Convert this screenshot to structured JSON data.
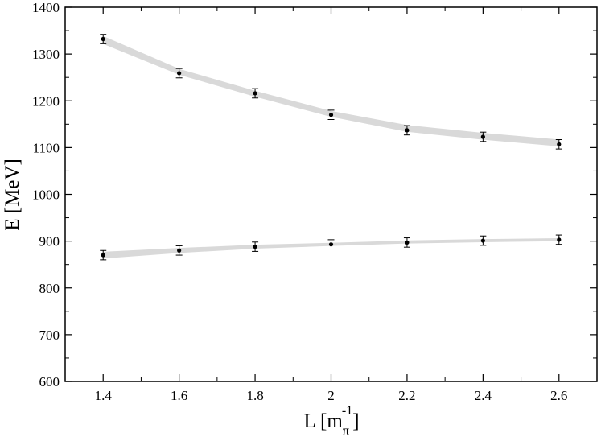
{
  "chart_data": {
    "type": "scatter",
    "title": "",
    "xlabel": {
      "main": "L [m",
      "sub": "π",
      "sup": "-1",
      "close": "]"
    },
    "ylabel": "E [MeV]",
    "xlim": [
      1.3,
      2.7
    ],
    "ylim": [
      600,
      1400
    ],
    "x_ticks": [
      1.4,
      1.6,
      1.8,
      2.0,
      2.2,
      2.4,
      2.6
    ],
    "x_tick_labels": [
      "1.4",
      "1.6",
      "1.8",
      "2",
      "2.2",
      "2.4",
      "2.6"
    ],
    "y_ticks": [
      600,
      700,
      800,
      900,
      1000,
      1100,
      1200,
      1300,
      1400
    ],
    "y_tick_labels": [
      "600",
      "700",
      "800",
      "900",
      "1000",
      "1100",
      "1200",
      "1300",
      "1400"
    ],
    "x_minor_step": 0.1,
    "y_minor_step": 50,
    "grid": false,
    "colors": {
      "points": "#000000",
      "band": "#d9d9d9",
      "axes": "#000000"
    },
    "series": [
      {
        "x": [
          1.4,
          1.6,
          1.8,
          2.0,
          2.2,
          2.4,
          2.6
        ],
        "y": [
          1332,
          1259,
          1216,
          1170,
          1137,
          1123,
          1107
        ],
        "err": [
          10,
          10,
          10,
          10,
          10,
          10,
          10
        ],
        "band": {
          "x": [
            1.4,
            1.6,
            1.8,
            2.0,
            2.2,
            2.4,
            2.6
          ],
          "y": [
            1330,
            1262,
            1215,
            1172,
            1141,
            1124,
            1110
          ],
          "halfwidth": [
            7,
            5,
            5,
            5,
            6,
            6,
            6
          ]
        }
      },
      {
        "x": [
          1.4,
          1.6,
          1.8,
          2.0,
          2.2,
          2.4,
          2.6
        ],
        "y": [
          870,
          880,
          888,
          893,
          897,
          901,
          903
        ],
        "err": [
          10,
          10,
          10,
          10,
          10,
          10,
          10
        ],
        "band": {
          "x": [
            1.4,
            1.6,
            1.8,
            2.0,
            2.2,
            2.4,
            2.6
          ],
          "y": [
            870,
            880,
            888,
            893,
            898,
            901,
            903
          ],
          "halfwidth": [
            6,
            4,
            3,
            2,
            2,
            2,
            2
          ]
        }
      }
    ]
  }
}
